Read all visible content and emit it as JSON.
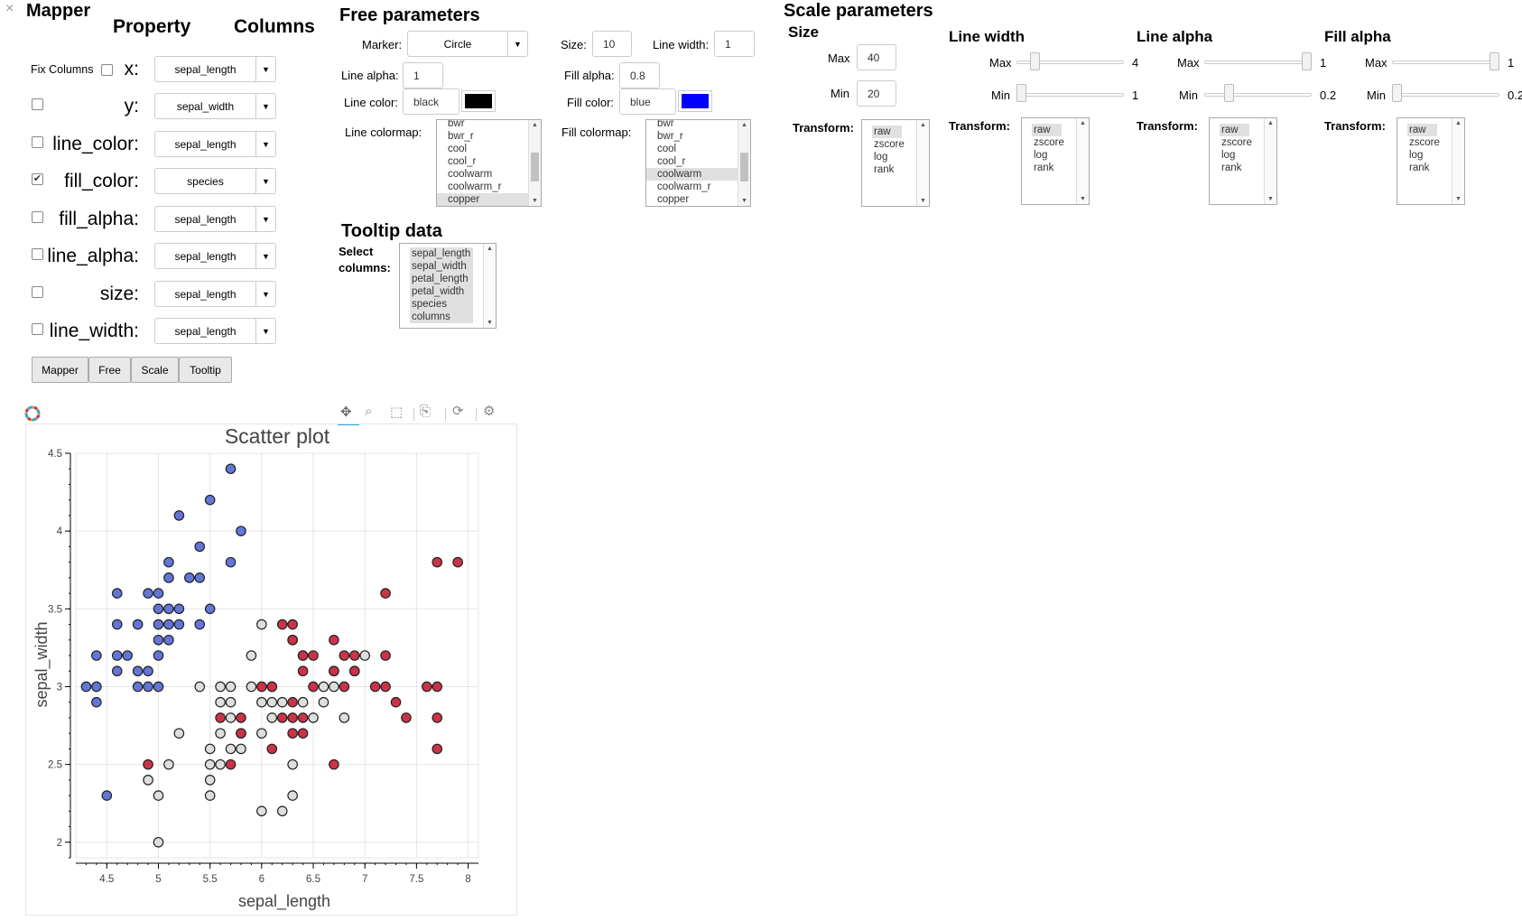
{
  "close_glyph": "×",
  "mapper": {
    "title": "Mapper",
    "col_property": "Property",
    "col_columns": "Columns",
    "fix_columns_label": "Fix Columns",
    "rows": [
      {
        "label": "x:",
        "value": "sepal_length",
        "checked": false
      },
      {
        "label": "y:",
        "value": "sepal_width",
        "checked": false
      },
      {
        "label": "line_color:",
        "value": "sepal_length",
        "checked": false
      },
      {
        "label": "fill_color:",
        "value": "species",
        "checked": true
      },
      {
        "label": "fill_alpha:",
        "value": "sepal_length",
        "checked": false
      },
      {
        "label": "line_alpha:",
        "value": "sepal_length",
        "checked": false
      },
      {
        "label": "size:",
        "value": "sepal_length",
        "checked": false
      },
      {
        "label": "line_width:",
        "value": "sepal_length",
        "checked": false
      }
    ],
    "tabs": [
      "Mapper",
      "Free",
      "Scale",
      "Tooltip"
    ]
  },
  "free": {
    "title": "Free parameters",
    "marker_label": "Marker:",
    "marker_value": "Circle",
    "size_label": "Size:",
    "size_value": "10",
    "line_width_label": "Line width:",
    "line_width_value": "1",
    "line_alpha_label": "Line alpha:",
    "line_alpha_value": "1",
    "fill_alpha_label": "Fill alpha:",
    "fill_alpha_value": "0.8",
    "line_color_label": "Line color:",
    "line_color_value": "black",
    "line_color_hex": "#000000",
    "fill_color_label": "Fill color:",
    "fill_color_value": "blue",
    "fill_color_hex": "#0000ff",
    "line_colormap_label": "Line colormap:",
    "fill_colormap_label": "Fill colormap:",
    "line_colormap_options": [
      "bwr",
      "bwr_r",
      "cool",
      "cool_r",
      "coolwarm",
      "coolwarm_r",
      "copper"
    ],
    "line_colormap_selected": "copper",
    "fill_colormap_options": [
      "bwr",
      "bwr_r",
      "cool",
      "cool_r",
      "coolwarm",
      "coolwarm_r",
      "copper"
    ],
    "fill_colormap_selected": "coolwarm"
  },
  "tooltip": {
    "title": "Tooltip data",
    "select_label_1": "Select",
    "select_label_2": "columns:",
    "options": [
      "sepal_length",
      "sepal_width",
      "petal_length",
      "petal_width",
      "species",
      "columns"
    ]
  },
  "scale": {
    "title": "Scale parameters",
    "size_title": "Size",
    "size_max_label": "Max",
    "size_max_value": "40",
    "size_min_label": "Min",
    "size_min_value": "20",
    "transform_label": "Transform:",
    "transform_options": [
      "raw",
      "zscore",
      "log",
      "rank"
    ],
    "groups": [
      {
        "title": "Line width",
        "max_label": "Max",
        "max_value": "4",
        "min_label": "Min",
        "min_value": "1",
        "max_level": 0.05,
        "min_level": 0.0
      },
      {
        "title": "Line alpha",
        "max_label": "Max",
        "max_value": "1",
        "min_label": "Min",
        "min_value": "0.2",
        "max_level": 1.0,
        "min_level": 0.2
      },
      {
        "title": "Fill alpha",
        "max_label": "Max",
        "max_value": "1",
        "min_label": "Min",
        "min_value": "0.2",
        "max_level": 1.0,
        "min_level": 0.0
      }
    ]
  },
  "chart_data": {
    "type": "scatter",
    "title": "Scatter plot",
    "xlabel": "sepal_length",
    "ylabel": "sepal_width",
    "xlim": [
      4.2,
      8.1
    ],
    "ylim": [
      1.9,
      4.5
    ],
    "xticks": [
      "4.5",
      "5",
      "5.5",
      "6",
      "6.5",
      "7",
      "7.5",
      "8"
    ],
    "yticks": [
      "2",
      "2.5",
      "3",
      "3.5",
      "4",
      "4.5"
    ],
    "grid": true,
    "colors": {
      "setosa": "#5b6fd6",
      "versicolor": "#dcdcdc",
      "virginica": "#c8283e"
    },
    "points": [
      [
        4.3,
        3.0,
        "setosa"
      ],
      [
        4.4,
        3.0,
        "setosa"
      ],
      [
        4.4,
        2.9,
        "setosa"
      ],
      [
        4.4,
        3.2,
        "setosa"
      ],
      [
        4.5,
        2.3,
        "setosa"
      ],
      [
        4.6,
        3.1,
        "setosa"
      ],
      [
        4.6,
        3.2,
        "setosa"
      ],
      [
        4.6,
        3.4,
        "setosa"
      ],
      [
        4.6,
        3.6,
        "setosa"
      ],
      [
        4.7,
        3.2,
        "setosa"
      ],
      [
        4.8,
        3.0,
        "setosa"
      ],
      [
        4.8,
        3.1,
        "setosa"
      ],
      [
        4.8,
        3.4,
        "setosa"
      ],
      [
        4.9,
        3.0,
        "setosa"
      ],
      [
        4.9,
        3.1,
        "setosa"
      ],
      [
        4.9,
        3.6,
        "setosa"
      ],
      [
        5.0,
        3.0,
        "setosa"
      ],
      [
        5.0,
        3.2,
        "setosa"
      ],
      [
        5.0,
        3.3,
        "setosa"
      ],
      [
        5.0,
        3.4,
        "setosa"
      ],
      [
        5.0,
        3.5,
        "setosa"
      ],
      [
        5.0,
        3.6,
        "setosa"
      ],
      [
        5.1,
        3.3,
        "setosa"
      ],
      [
        5.1,
        3.4,
        "setosa"
      ],
      [
        5.1,
        3.5,
        "setosa"
      ],
      [
        5.1,
        3.7,
        "setosa"
      ],
      [
        5.1,
        3.8,
        "setosa"
      ],
      [
        5.2,
        3.4,
        "setosa"
      ],
      [
        5.2,
        3.5,
        "setosa"
      ],
      [
        5.2,
        4.1,
        "setosa"
      ],
      [
        5.3,
        3.7,
        "setosa"
      ],
      [
        5.4,
        3.4,
        "setosa"
      ],
      [
        5.4,
        3.7,
        "setosa"
      ],
      [
        5.4,
        3.9,
        "setosa"
      ],
      [
        5.5,
        3.5,
        "setosa"
      ],
      [
        5.5,
        4.2,
        "setosa"
      ],
      [
        5.7,
        3.8,
        "setosa"
      ],
      [
        5.7,
        4.4,
        "setosa"
      ],
      [
        5.8,
        4.0,
        "setosa"
      ],
      [
        4.9,
        2.4,
        "versicolor"
      ],
      [
        5.0,
        2.0,
        "versicolor"
      ],
      [
        5.0,
        2.3,
        "versicolor"
      ],
      [
        5.1,
        2.5,
        "versicolor"
      ],
      [
        5.2,
        2.7,
        "versicolor"
      ],
      [
        5.4,
        3.0,
        "versicolor"
      ],
      [
        5.5,
        2.3,
        "versicolor"
      ],
      [
        5.5,
        2.4,
        "versicolor"
      ],
      [
        5.5,
        2.5,
        "versicolor"
      ],
      [
        5.5,
        2.6,
        "versicolor"
      ],
      [
        5.6,
        2.5,
        "versicolor"
      ],
      [
        5.6,
        2.7,
        "versicolor"
      ],
      [
        5.6,
        2.9,
        "versicolor"
      ],
      [
        5.6,
        3.0,
        "versicolor"
      ],
      [
        5.7,
        2.6,
        "versicolor"
      ],
      [
        5.7,
        2.8,
        "versicolor"
      ],
      [
        5.7,
        2.9,
        "versicolor"
      ],
      [
        5.7,
        3.0,
        "versicolor"
      ],
      [
        5.8,
        2.6,
        "versicolor"
      ],
      [
        5.8,
        2.7,
        "versicolor"
      ],
      [
        5.9,
        3.0,
        "versicolor"
      ],
      [
        5.9,
        3.2,
        "versicolor"
      ],
      [
        6.0,
        2.2,
        "versicolor"
      ],
      [
        6.0,
        2.7,
        "versicolor"
      ],
      [
        6.0,
        2.9,
        "versicolor"
      ],
      [
        6.0,
        3.4,
        "versicolor"
      ],
      [
        6.1,
        2.8,
        "versicolor"
      ],
      [
        6.1,
        2.9,
        "versicolor"
      ],
      [
        6.1,
        3.0,
        "versicolor"
      ],
      [
        6.2,
        2.2,
        "versicolor"
      ],
      [
        6.2,
        2.9,
        "versicolor"
      ],
      [
        6.3,
        2.3,
        "versicolor"
      ],
      [
        6.3,
        2.5,
        "versicolor"
      ],
      [
        6.3,
        3.3,
        "versicolor"
      ],
      [
        6.4,
        2.9,
        "versicolor"
      ],
      [
        6.4,
        3.2,
        "versicolor"
      ],
      [
        6.5,
        2.8,
        "versicolor"
      ],
      [
        6.6,
        2.9,
        "versicolor"
      ],
      [
        6.6,
        3.0,
        "versicolor"
      ],
      [
        6.7,
        3.0,
        "versicolor"
      ],
      [
        6.7,
        3.1,
        "versicolor"
      ],
      [
        6.8,
        2.8,
        "versicolor"
      ],
      [
        6.9,
        3.1,
        "versicolor"
      ],
      [
        7.0,
        3.2,
        "versicolor"
      ],
      [
        4.9,
        2.5,
        "virginica"
      ],
      [
        5.6,
        2.8,
        "virginica"
      ],
      [
        5.7,
        2.5,
        "virginica"
      ],
      [
        5.8,
        2.7,
        "virginica"
      ],
      [
        5.8,
        2.8,
        "virginica"
      ],
      [
        6.0,
        3.0,
        "virginica"
      ],
      [
        6.1,
        2.6,
        "virginica"
      ],
      [
        6.1,
        3.0,
        "virginica"
      ],
      [
        6.2,
        2.8,
        "virginica"
      ],
      [
        6.2,
        3.4,
        "virginica"
      ],
      [
        6.3,
        2.7,
        "virginica"
      ],
      [
        6.3,
        2.8,
        "virginica"
      ],
      [
        6.3,
        2.9,
        "virginica"
      ],
      [
        6.3,
        3.3,
        "virginica"
      ],
      [
        6.3,
        3.4,
        "virginica"
      ],
      [
        6.4,
        2.7,
        "virginica"
      ],
      [
        6.4,
        2.8,
        "virginica"
      ],
      [
        6.4,
        3.1,
        "virginica"
      ],
      [
        6.4,
        3.2,
        "virginica"
      ],
      [
        6.5,
        3.0,
        "virginica"
      ],
      [
        6.5,
        3.2,
        "virginica"
      ],
      [
        6.7,
        2.5,
        "virginica"
      ],
      [
        6.7,
        3.1,
        "virginica"
      ],
      [
        6.7,
        3.3,
        "virginica"
      ],
      [
        6.8,
        3.0,
        "virginica"
      ],
      [
        6.8,
        3.2,
        "virginica"
      ],
      [
        6.9,
        3.1,
        "virginica"
      ],
      [
        6.9,
        3.2,
        "virginica"
      ],
      [
        7.1,
        3.0,
        "virginica"
      ],
      [
        7.2,
        3.0,
        "virginica"
      ],
      [
        7.2,
        3.2,
        "virginica"
      ],
      [
        7.2,
        3.6,
        "virginica"
      ],
      [
        7.3,
        2.9,
        "virginica"
      ],
      [
        7.4,
        2.8,
        "virginica"
      ],
      [
        7.6,
        3.0,
        "virginica"
      ],
      [
        7.7,
        2.6,
        "virginica"
      ],
      [
        7.7,
        2.8,
        "virginica"
      ],
      [
        7.7,
        3.0,
        "virginica"
      ],
      [
        7.7,
        3.8,
        "virginica"
      ],
      [
        7.9,
        3.8,
        "virginica"
      ]
    ]
  }
}
